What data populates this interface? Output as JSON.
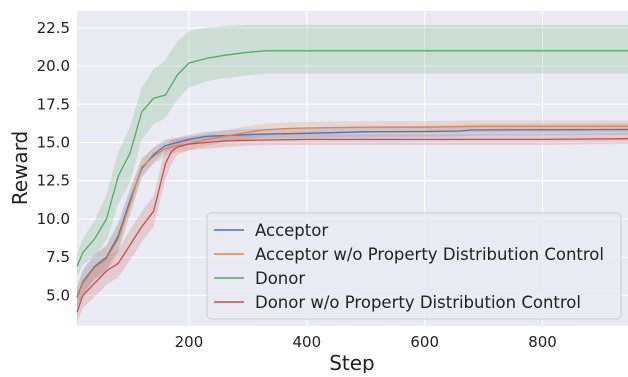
{
  "chart_data": {
    "type": "line",
    "title": "",
    "xlabel": "Step",
    "ylabel": "Reward",
    "xlim": [
      10,
      945
    ],
    "ylim": [
      3.0,
      23.6
    ],
    "xticks": [
      200,
      400,
      600,
      800
    ],
    "yticks": [
      5.0,
      7.5,
      10.0,
      12.5,
      15.0,
      17.5,
      20.0,
      22.5
    ],
    "xtick_labels": [
      "200",
      "400",
      "600",
      "800"
    ],
    "ytick_labels": [
      "5.0",
      "7.5",
      "10.0",
      "12.5",
      "15.0",
      "17.5",
      "20.0",
      "22.5"
    ],
    "grid": true,
    "legend_position": "lower-right",
    "series": [
      {
        "name": "Acceptor",
        "color": "#4c72b0",
        "x": [
          10,
          20,
          40,
          60,
          80,
          100,
          120,
          140,
          160,
          180,
          200,
          230,
          260,
          320,
          400,
          500,
          600,
          660,
          680,
          945
        ],
        "y": [
          4.9,
          5.9,
          6.9,
          7.5,
          8.9,
          11.2,
          13.3,
          14.2,
          14.8,
          15.0,
          15.2,
          15.4,
          15.45,
          15.55,
          15.6,
          15.7,
          15.72,
          15.75,
          15.82,
          15.85
        ],
        "lower": [
          4.2,
          5.1,
          6.1,
          6.7,
          8.0,
          10.4,
          12.7,
          13.7,
          14.4,
          14.7,
          14.9,
          15.1,
          15.15,
          15.25,
          15.3,
          15.35,
          15.38,
          15.4,
          15.45,
          15.5
        ],
        "upper": [
          5.6,
          6.7,
          7.7,
          8.3,
          9.8,
          12.0,
          13.9,
          14.7,
          15.2,
          15.3,
          15.5,
          15.7,
          15.8,
          15.9,
          15.95,
          16.05,
          16.1,
          16.15,
          16.2,
          16.25
        ]
      },
      {
        "name": "Acceptor w/o Property Distribution Control",
        "color": "#dd8452",
        "x": [
          10,
          20,
          40,
          60,
          80,
          100,
          120,
          140,
          160,
          180,
          200,
          230,
          260,
          320,
          360,
          400,
          500,
          600,
          700,
          945
        ],
        "y": [
          4.8,
          5.8,
          6.8,
          7.4,
          8.7,
          11.0,
          13.4,
          14.1,
          14.6,
          14.8,
          14.9,
          15.2,
          15.4,
          15.8,
          15.9,
          15.95,
          16.0,
          16.0,
          16.05,
          16.05
        ],
        "lower": [
          4.1,
          5.0,
          6.0,
          6.6,
          7.8,
          10.2,
          12.8,
          13.6,
          14.1,
          14.4,
          14.5,
          14.8,
          15.0,
          15.4,
          15.5,
          15.55,
          15.6,
          15.6,
          15.65,
          15.65
        ],
        "upper": [
          5.5,
          6.6,
          7.6,
          8.2,
          9.6,
          11.8,
          14.0,
          14.6,
          15.1,
          15.2,
          15.3,
          15.6,
          15.8,
          16.2,
          16.3,
          16.35,
          16.4,
          16.4,
          16.45,
          16.45
        ]
      },
      {
        "name": "Donor",
        "color": "#55a868",
        "x": [
          10,
          20,
          40,
          60,
          80,
          100,
          120,
          140,
          160,
          180,
          200,
          230,
          260,
          300,
          330,
          400,
          500,
          700,
          945
        ],
        "y": [
          6.9,
          7.8,
          8.7,
          10.0,
          12.8,
          14.3,
          17.0,
          17.9,
          18.1,
          19.4,
          20.2,
          20.5,
          20.7,
          20.9,
          21.0,
          21.0,
          21.0,
          21.0,
          21.0
        ],
        "lower": [
          6.2,
          7.0,
          7.6,
          8.6,
          11.0,
          12.4,
          15.2,
          16.2,
          16.6,
          17.8,
          18.6,
          19.0,
          19.2,
          19.4,
          19.5,
          19.5,
          19.5,
          19.5,
          19.5
        ],
        "upper": [
          7.7,
          8.7,
          9.9,
          11.6,
          14.4,
          16.0,
          18.6,
          19.8,
          20.4,
          21.6,
          22.3,
          22.5,
          22.6,
          22.7,
          22.7,
          22.7,
          22.7,
          22.7,
          22.7
        ]
      },
      {
        "name": "Donor w/o Property Distribution Control",
        "color": "#c44e52",
        "x": [
          10,
          20,
          40,
          60,
          80,
          100,
          120,
          140,
          160,
          170,
          180,
          200,
          230,
          260,
          300,
          400,
          600,
          800,
          945
        ],
        "y": [
          3.9,
          5.0,
          5.8,
          6.6,
          7.1,
          8.3,
          9.5,
          10.5,
          13.6,
          14.4,
          14.7,
          14.9,
          15.0,
          15.1,
          15.15,
          15.2,
          15.2,
          15.2,
          15.25
        ],
        "lower": [
          3.2,
          4.2,
          4.9,
          5.7,
          6.2,
          7.3,
          8.5,
          9.5,
          12.6,
          13.6,
          14.2,
          14.5,
          14.6,
          14.7,
          14.8,
          14.85,
          14.85,
          14.85,
          14.9
        ],
        "upper": [
          4.6,
          5.8,
          6.7,
          7.5,
          8.0,
          9.3,
          10.5,
          11.5,
          14.6,
          15.2,
          15.3,
          15.4,
          15.5,
          15.5,
          15.55,
          15.55,
          15.55,
          15.55,
          15.6
        ]
      }
    ]
  }
}
